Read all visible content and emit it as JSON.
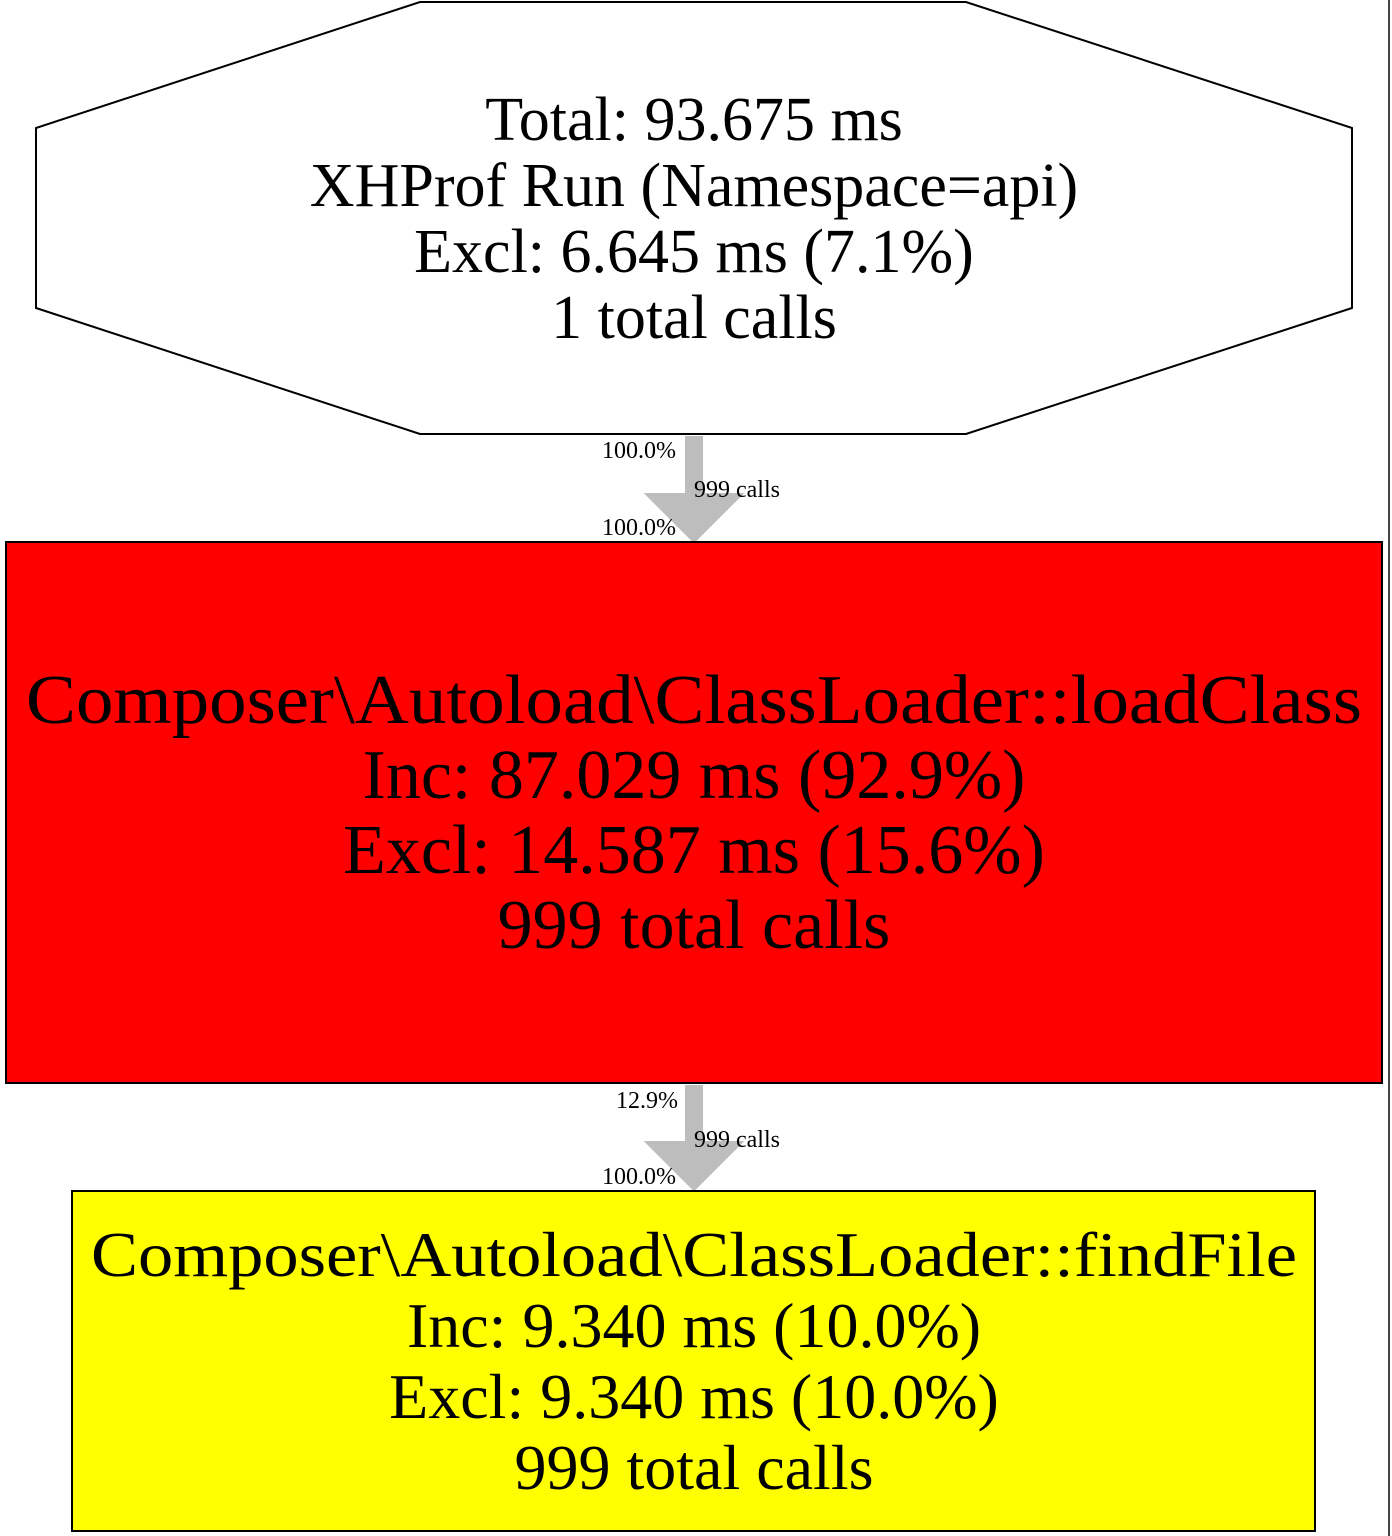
{
  "colors": {
    "background": "#ffffff",
    "root_fill": "#ffffff",
    "hot_fill": "#ff0000",
    "warm_fill": "#ffff00",
    "node_stroke": "#000000",
    "edge": "#bdbdbd",
    "right_border": "#444444"
  },
  "nodes": {
    "root": {
      "lines": [
        "Total: 93.675 ms",
        "XHProf Run (Namespace=api)",
        "Excl: 6.645 ms (7.1%)",
        "1 total calls"
      ]
    },
    "load_class": {
      "lines": [
        "Composer\\Autoload\\ClassLoader::loadClass",
        "Inc: 87.029 ms (92.9%)",
        "Excl: 14.587 ms (15.6%)",
        "999 total calls"
      ]
    },
    "find_file": {
      "lines": [
        "Composer\\Autoload\\ClassLoader::findFile",
        "Inc: 9.340 ms (10.0%)",
        "Excl: 9.340 ms (10.0%)",
        "999 total calls"
      ]
    }
  },
  "edges": [
    {
      "from": "root",
      "to": "load_class",
      "tail_label": "100.0%",
      "calls_label": "999 calls",
      "head_label": "100.0%"
    },
    {
      "from": "load_class",
      "to": "find_file",
      "tail_label": "12.9%",
      "calls_label": "999 calls",
      "head_label": "100.0%"
    }
  ]
}
